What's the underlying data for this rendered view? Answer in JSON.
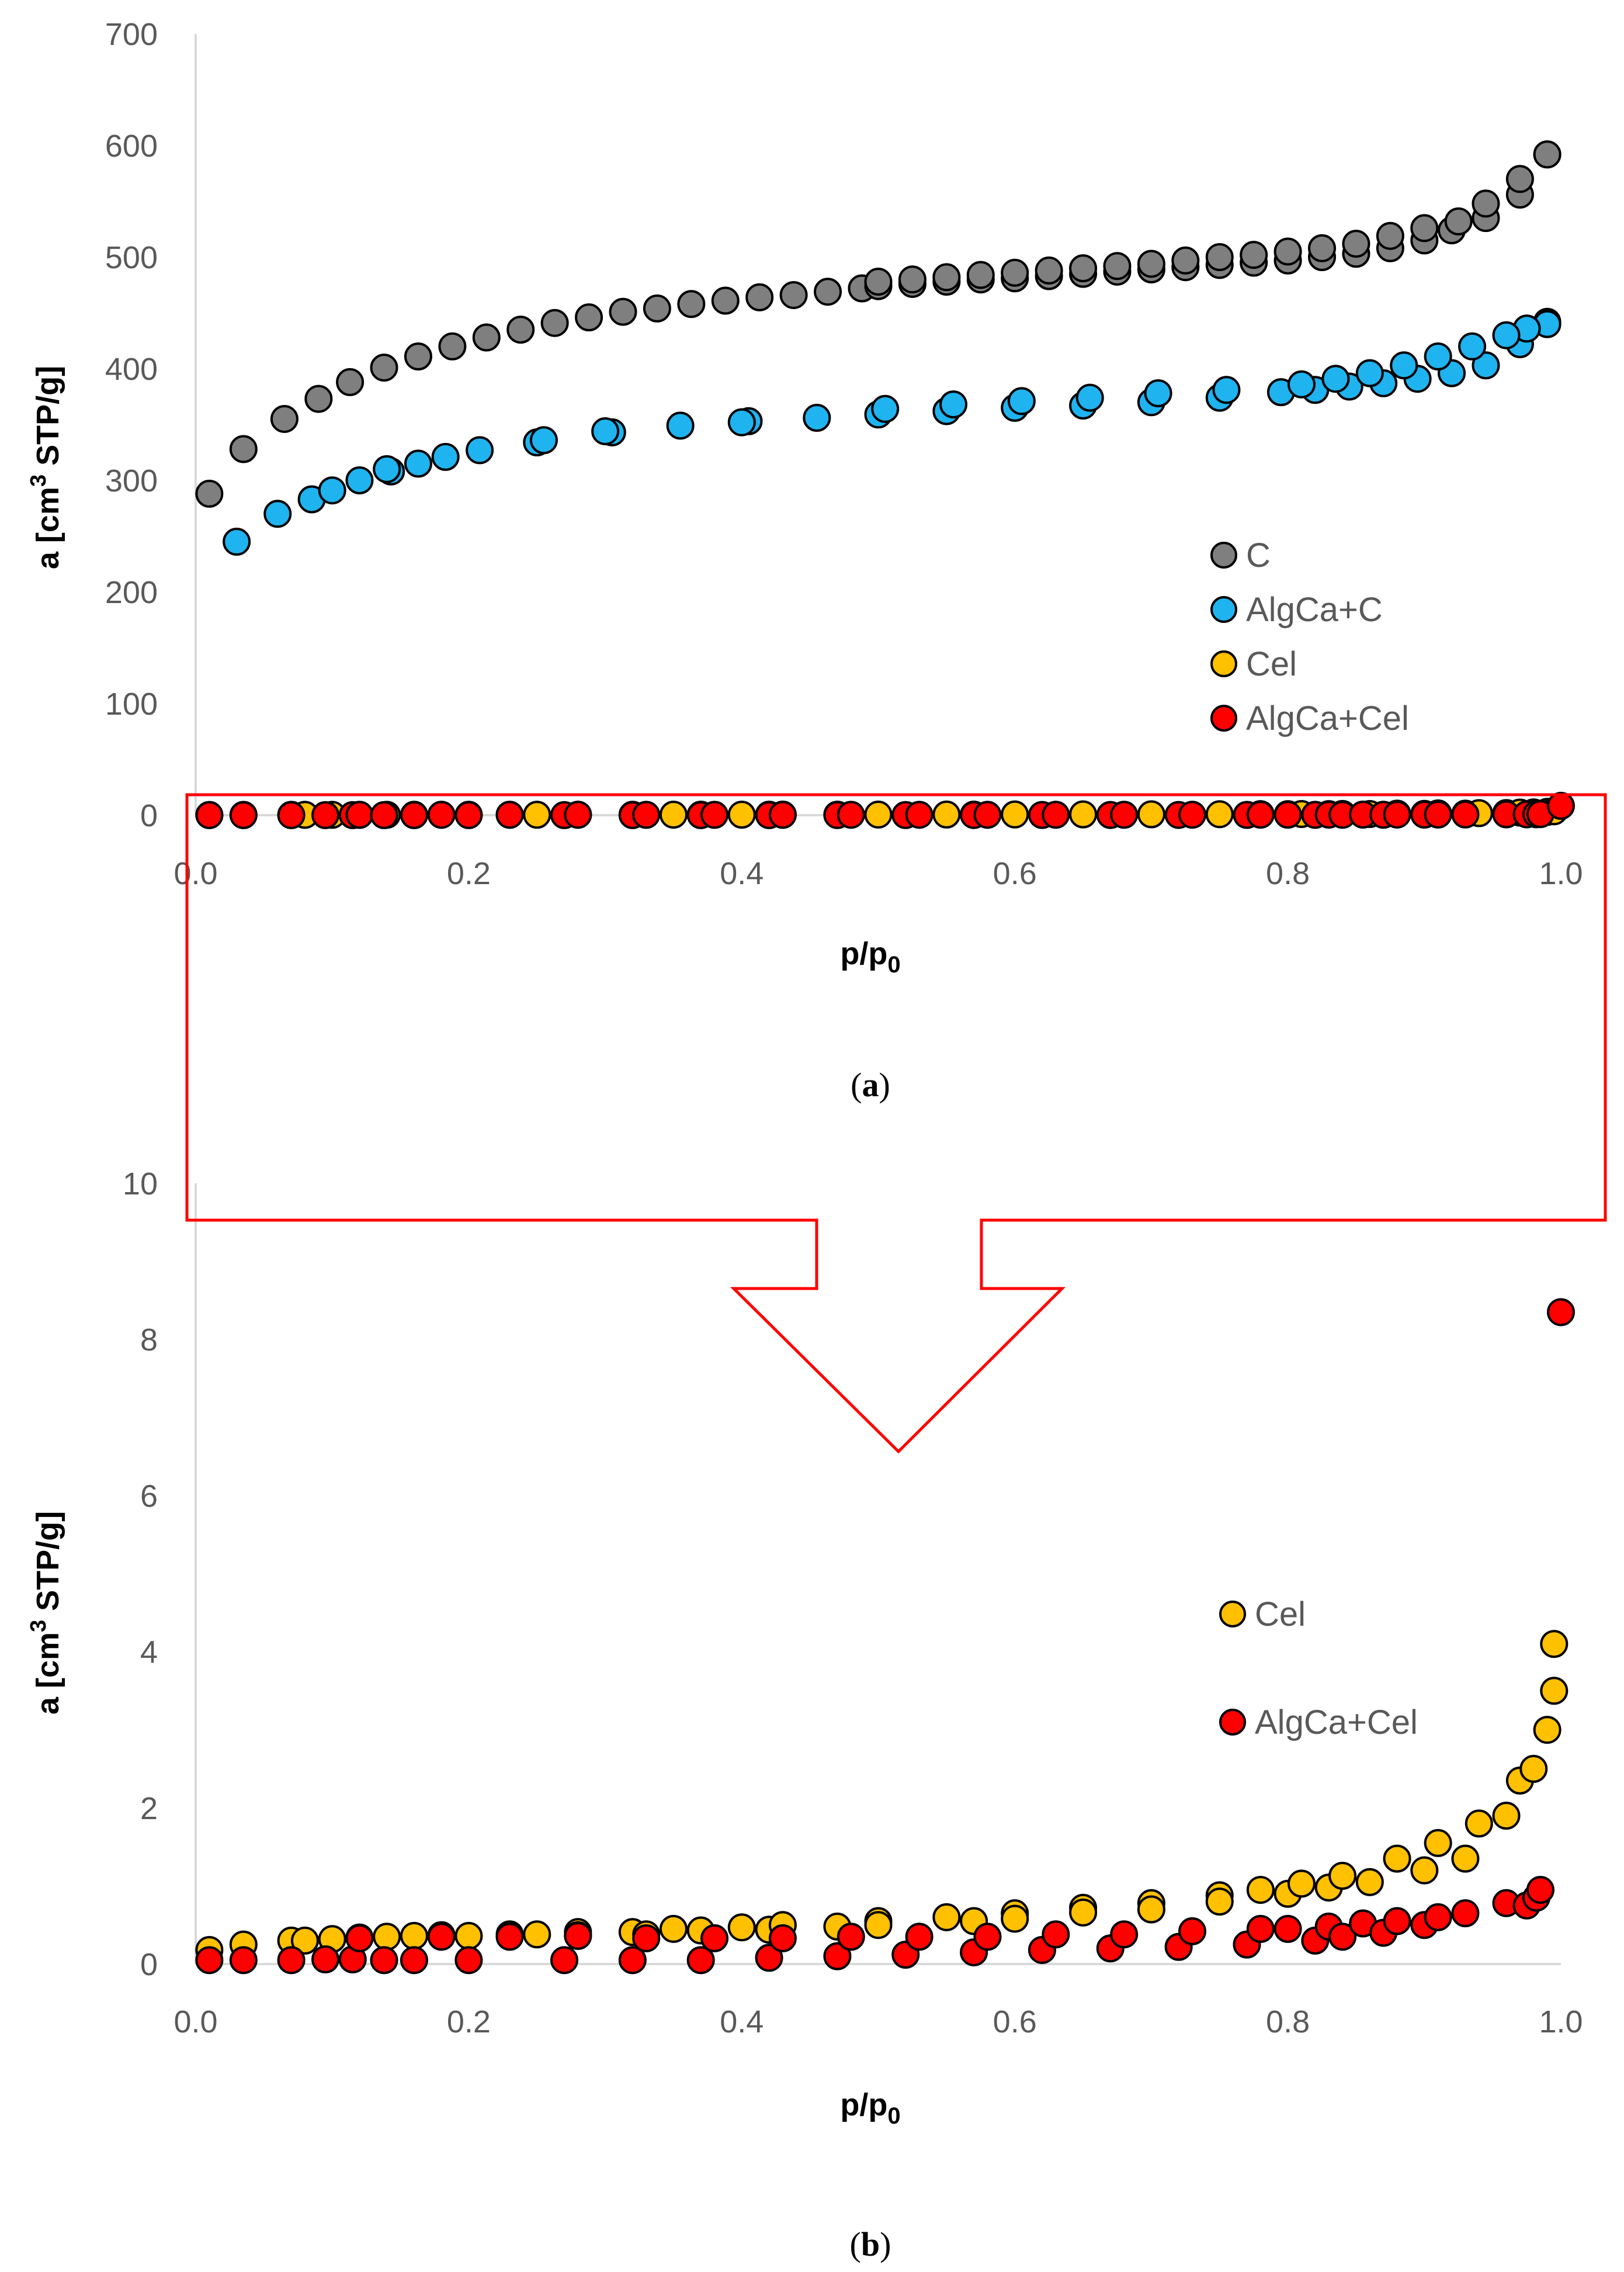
{
  "chart_data": [
    {
      "panel": "a",
      "panel_label": "a",
      "type": "scatter",
      "title": "",
      "xlabel": "p/p",
      "xlabel_sub": "0",
      "ylabel_pre": "a [cm",
      "ylabel_sup": "3",
      "ylabel_post": " STP/g]",
      "xlim": [
        0,
        1
      ],
      "ylim": [
        0,
        700
      ],
      "xticks": [
        0,
        0.2,
        0.4,
        0.6,
        0.8,
        1
      ],
      "xtick_labels": [
        "0.0",
        "0.2",
        "0.4",
        "0.6",
        "0.8",
        "1.0"
      ],
      "yticks": [
        0,
        100,
        200,
        300,
        400,
        500,
        600,
        700
      ],
      "ytick_labels": [
        "0",
        "100",
        "200",
        "300",
        "400",
        "500",
        "600",
        "700"
      ],
      "grid": false,
      "legend_position": "right",
      "series": [
        {
          "name": "C",
          "color": "#7f7f7f",
          "x": [
            0.01,
            0.035,
            0.065,
            0.09,
            0.113,
            0.138,
            0.163,
            0.188,
            0.213,
            0.238,
            0.263,
            0.288,
            0.313,
            0.338,
            0.363,
            0.388,
            0.413,
            0.438,
            0.463,
            0.488,
            0.5,
            0.525,
            0.55,
            0.575,
            0.6,
            0.625,
            0.65,
            0.675,
            0.7,
            0.725,
            0.75,
            0.775,
            0.8,
            0.825,
            0.85,
            0.875,
            0.9,
            0.92,
            0.945,
            0.97,
            0.99,
            0.99,
            0.97,
            0.945,
            0.925,
            0.9,
            0.875,
            0.85,
            0.825,
            0.8,
            0.775,
            0.75,
            0.725,
            0.7,
            0.675,
            0.65,
            0.625,
            0.6,
            0.575,
            0.55,
            0.525,
            0.5
          ],
          "y": [
            288,
            328,
            355,
            373,
            388,
            401,
            411,
            420,
            428,
            435,
            441,
            446,
            451,
            454,
            458,
            461,
            464,
            466,
            469,
            472,
            474,
            476,
            478,
            480,
            481,
            483,
            485,
            487,
            489,
            491,
            493,
            495,
            497,
            500,
            503,
            508,
            515,
            524,
            535,
            556,
            592,
            592,
            570,
            548,
            532,
            526,
            519,
            512,
            508,
            505,
            502,
            500,
            497,
            494,
            492,
            490,
            488,
            486,
            484,
            482,
            480,
            478
          ]
        },
        {
          "name": "AlgCa+C",
          "color": "#1fb3f0",
          "x": [
            0.03,
            0.06,
            0.085,
            0.1,
            0.12,
            0.143,
            0.163,
            0.183,
            0.208,
            0.25,
            0.255,
            0.305,
            0.355,
            0.405,
            0.455,
            0.5,
            0.55,
            0.6,
            0.65,
            0.7,
            0.75,
            0.795,
            0.82,
            0.845,
            0.87,
            0.895,
            0.92,
            0.945,
            0.97,
            0.99,
            0.99,
            0.975,
            0.96,
            0.935,
            0.91,
            0.885,
            0.86,
            0.835,
            0.81,
            0.755,
            0.705,
            0.655,
            0.605,
            0.555,
            0.505,
            0.4,
            0.3,
            0.14
          ],
          "y": [
            245,
            270,
            283,
            291,
            300,
            308,
            315,
            321,
            327,
            334,
            336,
            343,
            349,
            353,
            356,
            359,
            362,
            365,
            367,
            370,
            374,
            379,
            381,
            384,
            387,
            391,
            396,
            403,
            422,
            442,
            440,
            436,
            430,
            420,
            411,
            403,
            396,
            391,
            386,
            381,
            378,
            374,
            371,
            368,
            364,
            352,
            344,
            310
          ]
        },
        {
          "name": "Cel",
          "color": "#ffc000",
          "x": [
            0.01,
            0.035,
            0.07,
            0.08,
            0.1,
            0.12,
            0.14,
            0.16,
            0.18,
            0.2,
            0.23,
            0.25,
            0.28,
            0.32,
            0.35,
            0.37,
            0.4,
            0.42,
            0.43,
            0.47,
            0.5,
            0.55,
            0.57,
            0.6,
            0.65,
            0.7,
            0.75,
            0.78,
            0.8,
            0.81,
            0.83,
            0.84,
            0.86,
            0.88,
            0.9,
            0.91,
            0.93,
            0.94,
            0.96,
            0.97,
            0.98,
            0.99,
            0.995
          ],
          "y": [
            0.18,
            0.25,
            0.3,
            0.3,
            0.32,
            0.34,
            0.35,
            0.36,
            0.37,
            0.36,
            0.38,
            0.38,
            0.41,
            0.41,
            0.45,
            0.43,
            0.47,
            0.44,
            0.5,
            0.48,
            0.55,
            0.6,
            0.55,
            0.65,
            0.72,
            0.78,
            0.88,
            0.95,
            0.9,
            1.03,
            0.98,
            1.13,
            1.05,
            1.35,
            1.2,
            1.55,
            1.35,
            1.8,
            1.9,
            2.35,
            2.5,
            3.0,
            3.5
          ]
        },
        {
          "name": "AlgCa+Cel",
          "color": "#ff0000",
          "x": [
            0.01,
            0.035,
            0.07,
            0.095,
            0.115,
            0.12,
            0.138,
            0.16,
            0.18,
            0.2,
            0.23,
            0.27,
            0.28,
            0.32,
            0.33,
            0.37,
            0.38,
            0.42,
            0.43,
            0.47,
            0.48,
            0.52,
            0.53,
            0.57,
            0.58,
            0.62,
            0.63,
            0.67,
            0.68,
            0.72,
            0.73,
            0.77,
            0.78,
            0.8,
            0.82,
            0.83,
            0.84,
            0.855,
            0.87,
            0.88,
            0.9,
            0.91,
            0.93,
            0.96,
            0.975,
            0.982,
            0.985,
            1.0
          ],
          "y": [
            0.05,
            0.05,
            0.05,
            0.06,
            0.06,
            0.33,
            0.05,
            0.05,
            0.35,
            0.05,
            0.35,
            0.05,
            0.36,
            0.05,
            0.33,
            0.05,
            0.33,
            0.08,
            0.33,
            0.1,
            0.35,
            0.12,
            0.35,
            0.15,
            0.35,
            0.18,
            0.38,
            0.2,
            0.38,
            0.22,
            0.42,
            0.25,
            0.45,
            0.45,
            0.3,
            0.48,
            0.35,
            0.52,
            0.4,
            0.55,
            0.5,
            0.6,
            0.65,
            0.78,
            0.75,
            0.85,
            0.95,
            8.35
          ]
        }
      ],
      "legend": [
        "C",
        "AlgCa+C",
        "Cel",
        "AlgCa+Cel"
      ]
    },
    {
      "panel": "b",
      "panel_label": "b",
      "type": "scatter",
      "title": "",
      "xlabel": "p/p",
      "xlabel_sub": "0",
      "ylabel_pre": "a [cm",
      "ylabel_sup": "3",
      "ylabel_post": " STP/g]",
      "xlim": [
        0,
        1
      ],
      "ylim": [
        0,
        10
      ],
      "xticks": [
        0,
        0.2,
        0.4,
        0.6,
        0.8,
        1
      ],
      "xtick_labels": [
        "0.0",
        "0.2",
        "0.4",
        "0.6",
        "0.8",
        "1.0"
      ],
      "yticks": [
        0,
        2,
        4,
        6,
        8,
        10
      ],
      "ytick_labels": [
        "0",
        "2",
        "4",
        "6",
        "8",
        "10"
      ],
      "grid": false,
      "legend_position": "right",
      "series": [
        {
          "name": "Cel",
          "color": "#ffc000",
          "x": [
            0.01,
            0.035,
            0.07,
            0.08,
            0.1,
            0.12,
            0.14,
            0.16,
            0.18,
            0.2,
            0.23,
            0.25,
            0.28,
            0.28,
            0.32,
            0.33,
            0.35,
            0.37,
            0.4,
            0.42,
            0.43,
            0.47,
            0.5,
            0.5,
            0.55,
            0.57,
            0.6,
            0.6,
            0.65,
            0.65,
            0.7,
            0.7,
            0.75,
            0.75,
            0.78,
            0.8,
            0.81,
            0.83,
            0.84,
            0.86,
            0.88,
            0.9,
            0.91,
            0.93,
            0.94,
            0.96,
            0.97,
            0.98,
            0.99,
            0.995
          ],
          "y": [
            0.18,
            0.25,
            0.3,
            0.3,
            0.32,
            0.34,
            0.35,
            0.36,
            0.37,
            0.36,
            0.38,
            0.38,
            0.41,
            0.37,
            0.41,
            0.38,
            0.45,
            0.43,
            0.47,
            0.44,
            0.5,
            0.48,
            0.55,
            0.5,
            0.6,
            0.55,
            0.65,
            0.58,
            0.72,
            0.66,
            0.78,
            0.7,
            0.88,
            0.8,
            0.95,
            0.9,
            1.03,
            0.98,
            1.13,
            1.05,
            1.35,
            1.2,
            1.55,
            1.35,
            1.8,
            1.9,
            2.35,
            2.5,
            3.0,
            3.5
          ]
        },
        {
          "name": "AlgCa+Cel",
          "color": "#ff0000",
          "x": [
            0.01,
            0.035,
            0.07,
            0.095,
            0.115,
            0.12,
            0.138,
            0.16,
            0.18,
            0.2,
            0.23,
            0.27,
            0.28,
            0.32,
            0.33,
            0.37,
            0.38,
            0.42,
            0.43,
            0.47,
            0.48,
            0.52,
            0.53,
            0.57,
            0.58,
            0.62,
            0.63,
            0.67,
            0.68,
            0.72,
            0.73,
            0.77,
            0.78,
            0.8,
            0.82,
            0.83,
            0.84,
            0.855,
            0.87,
            0.88,
            0.9,
            0.91,
            0.93,
            0.96,
            0.975,
            0.982,
            0.985,
            1.0
          ],
          "y": [
            0.05,
            0.05,
            0.05,
            0.06,
            0.06,
            0.33,
            0.05,
            0.05,
            0.35,
            0.05,
            0.35,
            0.05,
            0.36,
            0.05,
            0.33,
            0.05,
            0.33,
            0.08,
            0.33,
            0.1,
            0.35,
            0.12,
            0.35,
            0.15,
            0.35,
            0.18,
            0.38,
            0.2,
            0.38,
            0.22,
            0.42,
            0.25,
            0.45,
            0.45,
            0.3,
            0.48,
            0.35,
            0.52,
            0.4,
            0.55,
            0.5,
            0.6,
            0.65,
            0.78,
            0.75,
            0.85,
            0.95,
            8.35
          ]
        }
      ],
      "extra_points": [
        {
          "series": "Cel",
          "x": 0.995,
          "y": 4.1
        }
      ],
      "legend": [
        "Cel",
        "AlgCa+Cel"
      ]
    }
  ],
  "zoom_annotation": {
    "color": "#ff0000",
    "description_visible": false
  }
}
